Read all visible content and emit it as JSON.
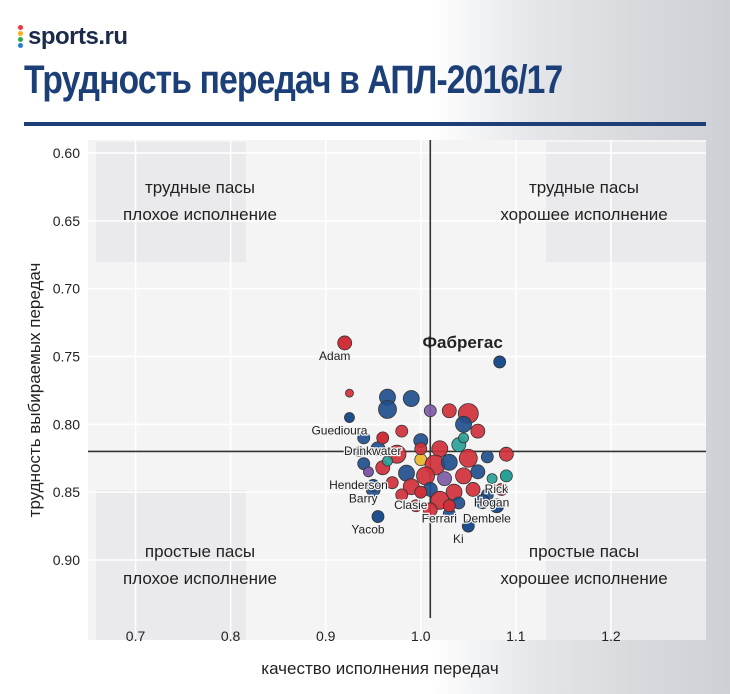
{
  "brand": {
    "logo_text": "sports.ru",
    "logo_colors": [
      "#e9383f",
      "#f6b021",
      "#2ba84a",
      "#2b7ad6"
    ]
  },
  "page_title": "Трудность передач в АПЛ-2016/17",
  "colors": {
    "title": "#1d3f78",
    "blue": "#1f4e8c",
    "red": "#d0303a",
    "purple": "#7d5ba6",
    "teal": "#2aa198",
    "yellow": "#e9b62b"
  },
  "chart_data": {
    "type": "scatter",
    "xlabel": "качество исполнения передач",
    "ylabel": "трудность выбираемых передач",
    "xlim": [
      0.65,
      1.3
    ],
    "ylim": [
      0.6,
      0.92
    ],
    "y_inverted": true,
    "x_ticks": [
      "0.7",
      "0.8",
      "0.9",
      "1.0",
      "1.1",
      "1.2"
    ],
    "y_ticks": [
      "0.60",
      "0.65",
      "0.70",
      "0.75",
      "0.80",
      "0.85",
      "0.90"
    ],
    "reference_lines": {
      "x": 1.01,
      "y": 0.82
    },
    "quadrants": [
      {
        "line1": "трудные пасы",
        "line2": "плохое исполнение",
        "position": "top-left"
      },
      {
        "line1": "трудные пасы",
        "line2": "хорошее исполнение",
        "position": "top-right"
      },
      {
        "line1": "простые пасы",
        "line2": "плохое исполнение",
        "position": "bottom-left"
      },
      {
        "line1": "простые пасы",
        "line2": "хорошее исполнение",
        "position": "bottom-right"
      }
    ],
    "labeled_points": [
      {
        "label": "Фабрегас",
        "x": 1.083,
        "y": 0.754,
        "color": "blue",
        "size": 6,
        "highlight": true
      },
      {
        "label": "Adam",
        "x": 0.92,
        "y": 0.74,
        "color": "red",
        "size": 7
      },
      {
        "label": "Guedioura",
        "x": 0.925,
        "y": 0.795,
        "color": "blue",
        "size": 5
      },
      {
        "label": "Drinkwater",
        "x": 0.96,
        "y": 0.81,
        "color": "red",
        "size": 6
      },
      {
        "label": "Henderson",
        "x": 0.945,
        "y": 0.835,
        "color": "purple",
        "size": 5
      },
      {
        "label": "Barry",
        "x": 0.95,
        "y": 0.845,
        "color": "blue",
        "size": 6
      },
      {
        "label": "Yacob",
        "x": 0.955,
        "y": 0.868,
        "color": "blue",
        "size": 6
      },
      {
        "label": "Clasie",
        "x": 1.0,
        "y": 0.85,
        "color": "red",
        "size": 6
      },
      {
        "label": "Ferrari",
        "x": 1.03,
        "y": 0.86,
        "color": "red",
        "size": 6
      },
      {
        "label": "Dembele",
        "x": 1.08,
        "y": 0.86,
        "color": "blue",
        "size": 7
      },
      {
        "label": "Hogan",
        "x": 1.085,
        "y": 0.848,
        "color": "red",
        "size": 6
      },
      {
        "label": "Rick",
        "x": 1.09,
        "y": 0.838,
        "color": "teal",
        "size": 6
      },
      {
        "label": "Ki",
        "x": 1.05,
        "y": 0.875,
        "color": "blue",
        "size": 6
      }
    ],
    "points": [
      {
        "x": 0.925,
        "y": 0.777,
        "color": "red",
        "size": 4
      },
      {
        "x": 0.965,
        "y": 0.78,
        "color": "blue",
        "size": 8
      },
      {
        "x": 0.99,
        "y": 0.781,
        "color": "blue",
        "size": 8
      },
      {
        "x": 0.965,
        "y": 0.789,
        "color": "blue",
        "size": 9
      },
      {
        "x": 1.01,
        "y": 0.79,
        "color": "purple",
        "size": 6
      },
      {
        "x": 1.03,
        "y": 0.79,
        "color": "red",
        "size": 7
      },
      {
        "x": 1.05,
        "y": 0.792,
        "color": "red",
        "size": 10
      },
      {
        "x": 1.045,
        "y": 0.8,
        "color": "blue",
        "size": 8
      },
      {
        "x": 1.06,
        "y": 0.805,
        "color": "red",
        "size": 7
      },
      {
        "x": 0.94,
        "y": 0.81,
        "color": "blue",
        "size": 6
      },
      {
        "x": 0.98,
        "y": 0.805,
        "color": "red",
        "size": 6
      },
      {
        "x": 1.0,
        "y": 0.812,
        "color": "blue",
        "size": 7
      },
      {
        "x": 1.02,
        "y": 0.818,
        "color": "red",
        "size": 8
      },
      {
        "x": 1.04,
        "y": 0.815,
        "color": "teal",
        "size": 7
      },
      {
        "x": 0.955,
        "y": 0.818,
        "color": "blue",
        "size": 7
      },
      {
        "x": 0.975,
        "y": 0.822,
        "color": "red",
        "size": 9
      },
      {
        "x": 1.0,
        "y": 0.826,
        "color": "yellow",
        "size": 6
      },
      {
        "x": 1.015,
        "y": 0.83,
        "color": "red",
        "size": 10
      },
      {
        "x": 1.03,
        "y": 0.828,
        "color": "blue",
        "size": 8
      },
      {
        "x": 1.05,
        "y": 0.825,
        "color": "red",
        "size": 9
      },
      {
        "x": 1.07,
        "y": 0.824,
        "color": "blue",
        "size": 6
      },
      {
        "x": 1.09,
        "y": 0.822,
        "color": "red",
        "size": 7
      },
      {
        "x": 0.935,
        "y": 0.82,
        "color": "blue",
        "size": 5
      },
      {
        "x": 0.96,
        "y": 0.832,
        "color": "red",
        "size": 7
      },
      {
        "x": 0.985,
        "y": 0.836,
        "color": "blue",
        "size": 8
      },
      {
        "x": 1.005,
        "y": 0.838,
        "color": "red",
        "size": 9
      },
      {
        "x": 1.025,
        "y": 0.84,
        "color": "purple",
        "size": 7
      },
      {
        "x": 1.045,
        "y": 0.838,
        "color": "red",
        "size": 8
      },
      {
        "x": 1.06,
        "y": 0.835,
        "color": "blue",
        "size": 7
      },
      {
        "x": 1.075,
        "y": 0.84,
        "color": "teal",
        "size": 5
      },
      {
        "x": 0.97,
        "y": 0.843,
        "color": "red",
        "size": 6
      },
      {
        "x": 0.99,
        "y": 0.846,
        "color": "red",
        "size": 8
      },
      {
        "x": 1.01,
        "y": 0.848,
        "color": "blue",
        "size": 7
      },
      {
        "x": 1.035,
        "y": 0.85,
        "color": "red",
        "size": 8
      },
      {
        "x": 1.055,
        "y": 0.848,
        "color": "red",
        "size": 7
      },
      {
        "x": 1.07,
        "y": 0.852,
        "color": "blue",
        "size": 6
      },
      {
        "x": 0.95,
        "y": 0.848,
        "color": "blue",
        "size": 7
      },
      {
        "x": 0.98,
        "y": 0.852,
        "color": "red",
        "size": 6
      },
      {
        "x": 1.02,
        "y": 0.856,
        "color": "red",
        "size": 9
      },
      {
        "x": 1.04,
        "y": 0.858,
        "color": "blue",
        "size": 6
      },
      {
        "x": 1.065,
        "y": 0.857,
        "color": "blue",
        "size": 7
      },
      {
        "x": 0.995,
        "y": 0.86,
        "color": "red",
        "size": 6
      },
      {
        "x": 1.01,
        "y": 0.863,
        "color": "red",
        "size": 7
      },
      {
        "x": 1.03,
        "y": 0.866,
        "color": "blue",
        "size": 6
      },
      {
        "x": 0.965,
        "y": 0.827,
        "color": "teal",
        "size": 5
      },
      {
        "x": 0.94,
        "y": 0.829,
        "color": "blue",
        "size": 6
      },
      {
        "x": 1.0,
        "y": 0.818,
        "color": "red",
        "size": 6
      },
      {
        "x": 1.045,
        "y": 0.81,
        "color": "teal",
        "size": 5
      }
    ]
  }
}
